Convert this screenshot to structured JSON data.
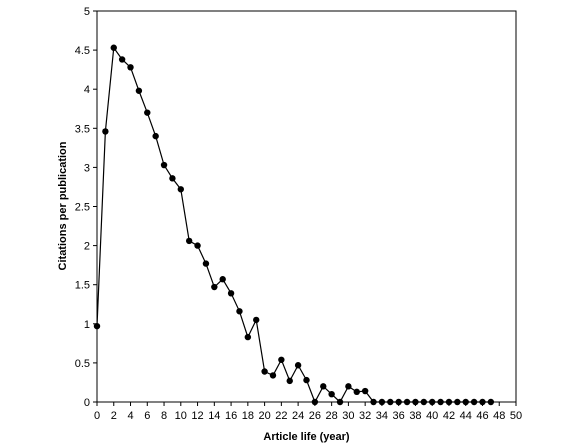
{
  "chart_data": {
    "type": "line",
    "title": "",
    "xlabel": "Article life (year)",
    "ylabel": "Citations per publication",
    "xlim": [
      0,
      50
    ],
    "ylim": [
      0,
      5
    ],
    "x_ticks": [
      0,
      2,
      4,
      6,
      8,
      10,
      12,
      14,
      16,
      18,
      20,
      22,
      24,
      26,
      28,
      30,
      32,
      34,
      36,
      38,
      40,
      42,
      44,
      46,
      48,
      50
    ],
    "y_ticks": [
      0,
      0.5,
      1,
      1.5,
      2,
      2.5,
      3,
      3.5,
      4,
      4.5,
      5
    ],
    "y_tick_labels": [
      "0",
      "0.5",
      "1",
      "1.5",
      "2",
      "2.5",
      "3",
      "3.5",
      "4",
      "4.5",
      "5"
    ],
    "grid": false,
    "legend": "none",
    "marker": "filled-circle",
    "line_color": "#000000",
    "series": [
      {
        "x": [
          0,
          1,
          2,
          3,
          4,
          5,
          6,
          7,
          8,
          9,
          10,
          11,
          12,
          13,
          14,
          15,
          16,
          17,
          18,
          19,
          20,
          21,
          22,
          23,
          24,
          25,
          26,
          27,
          28,
          29,
          30,
          31,
          32,
          33,
          34,
          35,
          36,
          37,
          38,
          39,
          40,
          41,
          42,
          43,
          44,
          45,
          46,
          47
        ],
        "values": [
          0.97,
          3.46,
          4.53,
          4.38,
          4.28,
          3.98,
          3.7,
          3.4,
          3.03,
          2.86,
          2.72,
          2.06,
          2.0,
          1.77,
          1.47,
          1.57,
          1.39,
          1.16,
          0.83,
          1.05,
          0.39,
          0.34,
          0.54,
          0.27,
          0.47,
          0.28,
          0.0,
          0.2,
          0.1,
          0.0,
          0.2,
          0.13,
          0.14,
          0.0,
          0.0,
          0.0,
          0.0,
          0.0,
          0.0,
          0.0,
          0.0,
          0.0,
          0.0,
          0.0,
          0.0,
          0.0,
          0.0,
          0.0
        ]
      }
    ]
  }
}
